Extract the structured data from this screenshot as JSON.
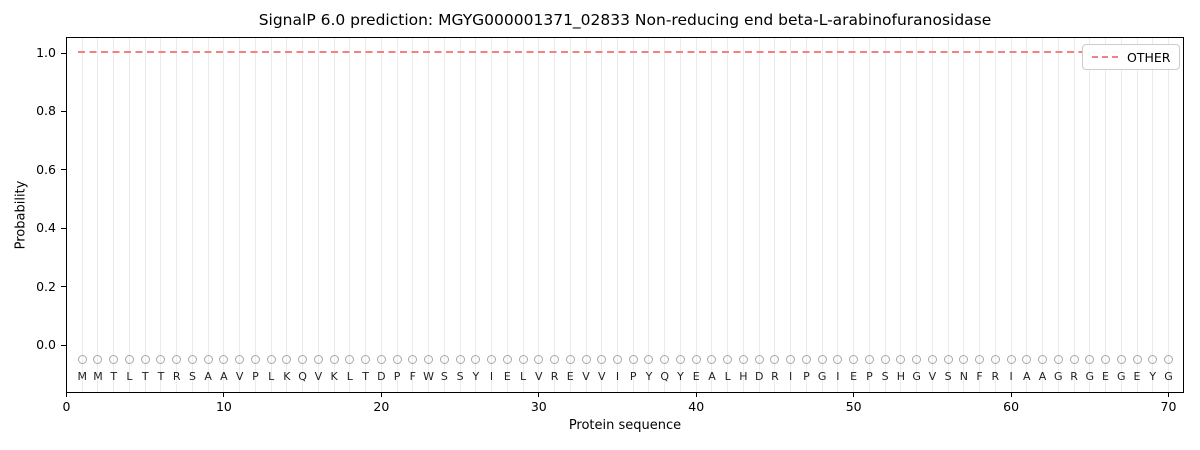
{
  "chart_data": {
    "type": "line",
    "title": "SignalP 6.0 prediction: MGYG000001371_02833 Non-reducing end beta-L-arabinofuranosidase",
    "xlabel": "Protein sequence",
    "ylabel": "Probability",
    "xlim": [
      0,
      71
    ],
    "ylim": [
      -0.17,
      1.06
    ],
    "x_ticks": [
      "0",
      "10",
      "20",
      "30",
      "40",
      "50",
      "60",
      "70"
    ],
    "y_ticks": [
      "0.0",
      "0.2",
      "0.4",
      "0.6",
      "0.8",
      "1.0"
    ],
    "grid": "vertical gridline at every residue position",
    "grid_color": "#ebebeb",
    "legend_position": "upper right",
    "series": [
      {
        "name": "OTHER",
        "style": "dashed",
        "color": "#f28181",
        "x_range": [
          1,
          70
        ],
        "constant_value": 1.0
      }
    ],
    "sequence": "MMTLTTRSAAVPLKQVKLTDPFWSSYIELVREVVIPYQYEALHDRIPGIEPSHGVSNFRIAAGRGEGEYG",
    "residue_marker": {
      "shape": "open-circle",
      "color": "#a8a8a8",
      "y": -0.05
    }
  }
}
